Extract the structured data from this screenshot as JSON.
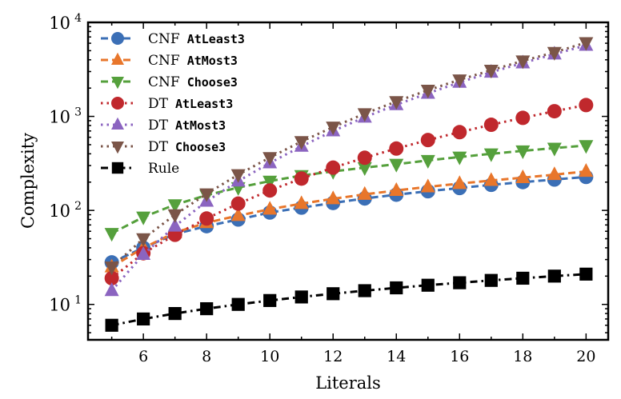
{
  "chart_data": {
    "type": "line",
    "xlabel": "Literals",
    "ylabel": "Complexity",
    "yscale": "log",
    "xlim": [
      4.25,
      20.7
    ],
    "ylim": [
      4.2,
      10000
    ],
    "xticks": [
      6,
      8,
      10,
      12,
      14,
      16,
      18,
      20
    ],
    "yticks": [
      {
        "value": 10,
        "base": "10",
        "exp": "1"
      },
      {
        "value": 100,
        "base": "10",
        "exp": "2"
      },
      {
        "value": 1000,
        "base": "10",
        "exp": "3"
      },
      {
        "value": 10000,
        "base": "10",
        "exp": "4"
      }
    ],
    "grid": false,
    "legend_position": "top-left",
    "x": [
      5,
      6,
      7,
      8,
      9,
      10,
      11,
      12,
      13,
      14,
      15,
      16,
      17,
      18,
      19,
      20
    ],
    "series": [
      {
        "name_main": "CNF",
        "name_code": "AtLeast3",
        "color": "#3b6fb6",
        "marker": "circle",
        "dash": "dashed",
        "values": [
          28,
          40,
          56,
          68,
          80,
          95,
          107,
          120,
          134,
          147,
          160,
          173,
          187,
          200,
          213,
          227
        ]
      },
      {
        "name_main": "CNF",
        "name_code": "AtMost3",
        "color": "#e8762b",
        "marker": "triangle-up",
        "dash": "dashed",
        "values": [
          25,
          40,
          58,
          74,
          88,
          103,
          118,
          133,
          148,
          163,
          178,
          193,
          208,
          223,
          240,
          260
        ]
      },
      {
        "name_main": "CNF",
        "name_code": "Choose3",
        "color": "#55a03c",
        "marker": "triangle-down",
        "dash": "dashed",
        "values": [
          57,
          85,
          115,
          145,
          175,
          205,
          235,
          260,
          285,
          310,
          340,
          370,
          400,
          430,
          460,
          490
        ]
      },
      {
        "name_main": "DT",
        "name_code": "AtLeast3",
        "color": "#c0282d",
        "marker": "circle",
        "dash": "dotted",
        "values": [
          19,
          35,
          55,
          82,
          118,
          163,
          218,
          285,
          363,
          455,
          560,
          680,
          815,
          965,
          1135,
          1320
        ]
      },
      {
        "name_main": "DT",
        "name_code": "AtMost3",
        "color": "#8b64c0",
        "marker": "triangle-up",
        "dash": "dotted",
        "values": [
          14,
          34,
          68,
          125,
          205,
          320,
          480,
          700,
          980,
          1330,
          1760,
          2300,
          2950,
          3700,
          4600,
          5700
        ]
      },
      {
        "name_main": "DT",
        "name_code": "Choose3",
        "color": "#7b5548",
        "marker": "triangle-down",
        "dash": "dotted",
        "values": [
          25,
          50,
          90,
          150,
          240,
          365,
          540,
          770,
          1070,
          1440,
          1900,
          2450,
          3100,
          3900,
          4800,
          6100
        ]
      },
      {
        "name_main": "Rule",
        "name_code": "",
        "color": "#000000",
        "marker": "square",
        "dash": "dashdot",
        "values": [
          6,
          7,
          8,
          9,
          10,
          11,
          12,
          13,
          14,
          15,
          16,
          17,
          18,
          19,
          20,
          21
        ]
      }
    ]
  }
}
